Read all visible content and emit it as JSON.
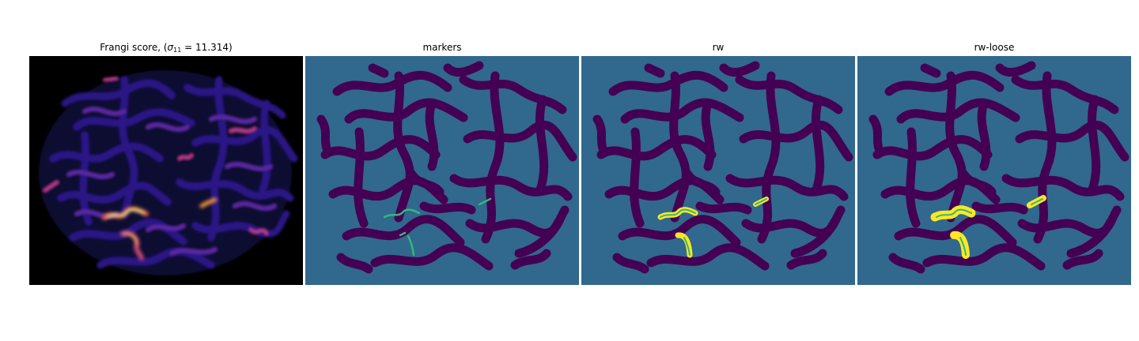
{
  "panels": [
    {
      "id": "frangi",
      "title_prefix": "Frangi score, (",
      "title_sigma": "σ",
      "title_sub": "11",
      "title_suffix": " = 11.314)"
    },
    {
      "id": "markers",
      "title": "markers"
    },
    {
      "id": "rw",
      "title": "rw"
    },
    {
      "id": "rw_loose",
      "title": "rw-loose"
    }
  ],
  "colors": {
    "figure_bg": "#ffffff",
    "frangi_bg": "#000000",
    "frangi_low": "#1a0f5e",
    "frangi_mid": "#5a2a9a",
    "frangi_high": "#f9a03f",
    "frangi_peak": "#fcf3b0",
    "label_background": "#31688e",
    "label_vessel": "#440154",
    "label_marker": "#35b779",
    "label_result": "#fde725"
  }
}
